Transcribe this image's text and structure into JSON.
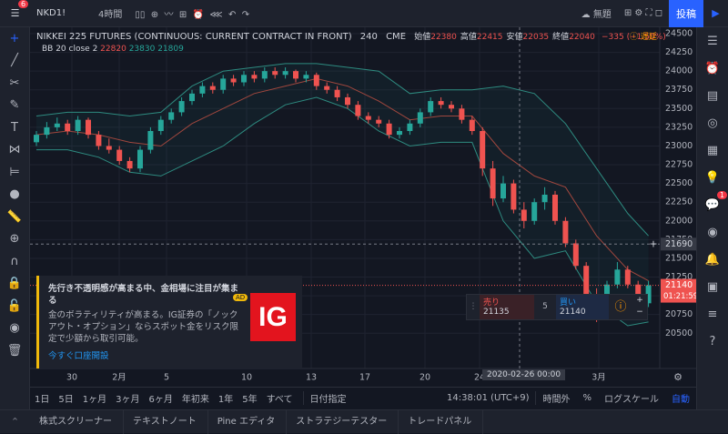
{
  "toolbar": {
    "badge": "6",
    "symbol": "NKD1!",
    "interval": "4時間",
    "layout_name": "無題",
    "publish": "投稿",
    "alert_badge": "1"
  },
  "legend": {
    "title": "NIKKEI 225 FUTURES (CONTINUOUS: CURRENT CONTRACT IN FRONT)",
    "interval": "240",
    "exchange": "CME",
    "ohlc": [
      {
        "label": "始値",
        "value": 22380
      },
      {
        "label": "高値",
        "value": 22415
      },
      {
        "label": "安値",
        "value": 22035
      },
      {
        "label": "終値",
        "value": 22040
      }
    ],
    "change": "−335 (−1.50%)",
    "delayed": "遅延",
    "bb_label": "BB 20 close 2",
    "bb_values": [
      22820,
      23830,
      21809
    ]
  },
  "chart_data": {
    "type": "candlestick",
    "up_color": "#26a69a",
    "down_color": "#ef5350",
    "band_color": "#2e8b80",
    "middle_color": "#a0473e",
    "ohlc": [
      [
        23050,
        23200,
        23000,
        23150
      ],
      [
        23150,
        23320,
        23100,
        23250
      ],
      [
        23250,
        23380,
        23200,
        23300
      ],
      [
        23300,
        23350,
        23150,
        23200
      ],
      [
        23200,
        23400,
        23150,
        23350
      ],
      [
        23350,
        23380,
        23100,
        23150
      ],
      [
        23150,
        23200,
        22950,
        23000
      ],
      [
        23000,
        23100,
        22900,
        22950
      ],
      [
        22950,
        23000,
        22750,
        22800
      ],
      [
        22800,
        22850,
        22650,
        22700
      ],
      [
        22700,
        23000,
        22650,
        22950
      ],
      [
        22950,
        23250,
        22900,
        23200
      ],
      [
        23200,
        23400,
        23150,
        23350
      ],
      [
        23350,
        23500,
        23300,
        23450
      ],
      [
        23450,
        23650,
        23400,
        23600
      ],
      [
        23600,
        23750,
        23550,
        23700
      ],
      [
        23700,
        23850,
        23650,
        23800
      ],
      [
        23800,
        23850,
        23700,
        23750
      ],
      [
        23750,
        23950,
        23700,
        23900
      ],
      [
        23900,
        23950,
        23800,
        23850
      ],
      [
        23850,
        24000,
        23800,
        23950
      ],
      [
        23950,
        24000,
        23850,
        23900
      ],
      [
        23900,
        24050,
        23850,
        24000
      ],
      [
        24000,
        24050,
        23900,
        23950
      ],
      [
        23950,
        24050,
        23900,
        24000
      ],
      [
        24000,
        24020,
        23850,
        23900
      ],
      [
        23900,
        24000,
        23850,
        23950
      ],
      [
        23950,
        23980,
        23750,
        23800
      ],
      [
        23800,
        23850,
        23700,
        23750
      ],
      [
        23750,
        23800,
        23600,
        23650
      ],
      [
        23650,
        23700,
        23500,
        23550
      ],
      [
        23550,
        23600,
        23350,
        23400
      ],
      [
        23400,
        23450,
        23300,
        23350
      ],
      [
        23350,
        23400,
        23250,
        23300
      ],
      [
        23300,
        23350,
        23100,
        23150
      ],
      [
        23150,
        23250,
        23100,
        23200
      ],
      [
        23200,
        23350,
        23150,
        23300
      ],
      [
        23300,
        23500,
        23250,
        23450
      ],
      [
        23450,
        23650,
        23400,
        23600
      ],
      [
        23600,
        23650,
        23500,
        23550
      ],
      [
        23550,
        23600,
        23450,
        23500
      ],
      [
        23500,
        23550,
        23300,
        23350
      ],
      [
        23350,
        23400,
        23150,
        23200
      ],
      [
        23200,
        23250,
        22600,
        22700
      ],
      [
        22700,
        22800,
        22200,
        22300
      ],
      [
        22300,
        22600,
        22250,
        22500
      ],
      [
        22500,
        22550,
        22100,
        22150
      ],
      [
        22150,
        22250,
        21900,
        22000
      ],
      [
        22000,
        22300,
        21950,
        22250
      ],
      [
        22250,
        22450,
        22150,
        22350
      ],
      [
        22350,
        22400,
        21950,
        22000
      ],
      [
        22000,
        22050,
        21650,
        21700
      ],
      [
        21700,
        21750,
        21350,
        21400
      ],
      [
        21400,
        21450,
        20950,
        21000
      ],
      [
        21000,
        21100,
        20650,
        20750
      ],
      [
        20750,
        21200,
        20700,
        21150
      ],
      [
        21150,
        21450,
        21100,
        21350
      ],
      [
        21350,
        21400,
        21100,
        21150
      ],
      [
        21150,
        21200,
        20850,
        20900
      ],
      [
        20900,
        21200,
        20850,
        21140
      ]
    ],
    "bb": {
      "x": [
        0,
        3,
        6,
        9,
        12,
        15,
        18,
        21,
        24,
        27,
        30,
        33,
        36,
        39,
        42,
        45,
        48,
        51,
        54,
        57,
        59
      ],
      "upper": [
        23400,
        23450,
        23450,
        23400,
        23450,
        23800,
        24000,
        24050,
        24100,
        24100,
        24050,
        24000,
        23700,
        23750,
        23750,
        23800,
        23700,
        23300,
        22700,
        22100,
        21800
      ],
      "middle": [
        23150,
        23200,
        23150,
        23050,
        23000,
        23300,
        23500,
        23700,
        23800,
        23900,
        23800,
        23600,
        23350,
        23400,
        23400,
        22900,
        22600,
        22450,
        21800,
        21350,
        21200
      ],
      "lower": [
        22950,
        22950,
        22850,
        22650,
        22600,
        22800,
        23000,
        23300,
        23550,
        23650,
        23500,
        23200,
        23000,
        23050,
        23050,
        22000,
        21500,
        21600,
        20900,
        20600,
        20650
      ]
    },
    "ylim": [
      20090,
      24585
    ],
    "yticks": [
      20500,
      20750,
      21000,
      21250,
      21500,
      21750,
      22000,
      22250,
      22500,
      22750,
      23000,
      23250,
      23500,
      23750,
      24000,
      24250,
      24500
    ],
    "x_labels": [
      "30",
      "2月",
      "5",
      "10",
      "13",
      "17",
      "20",
      "24",
      "3月"
    ],
    "crosshair": {
      "price": 21690,
      "date": "2020-02-26 00:00"
    },
    "last_price": 21140,
    "countdown": "01:21:59"
  },
  "trade": {
    "sell_label": "売り",
    "sell_price": "21135",
    "spread": "5",
    "buy_label": "買い",
    "buy_price": "21140"
  },
  "ad": {
    "title": "先行き不透明感が高まる中、金相場に注目が集まる",
    "tag": "AD",
    "body": "金のボラティリティが高まる。IG証券の「ノックアウト・オプション」ならスポット金をリスク限定で少額から取引可能。",
    "link": "今すぐ口座開設",
    "logo": "IG"
  },
  "range_bar": {
    "ranges": [
      "1日",
      "5日",
      "1ヶ月",
      "3ヶ月",
      "6ヶ月",
      "年初来",
      "1年",
      "5年",
      "すべて"
    ],
    "goto": "日付指定",
    "clock": "14:38:01 (UTC+9)",
    "session": "時間外",
    "percent": "%",
    "log": "ログスケール",
    "auto": "自動"
  },
  "tabs": [
    "株式スクリーナー",
    "テキストノート",
    "Pine エディタ",
    "ストラテジーテスター",
    "トレードパネル"
  ]
}
